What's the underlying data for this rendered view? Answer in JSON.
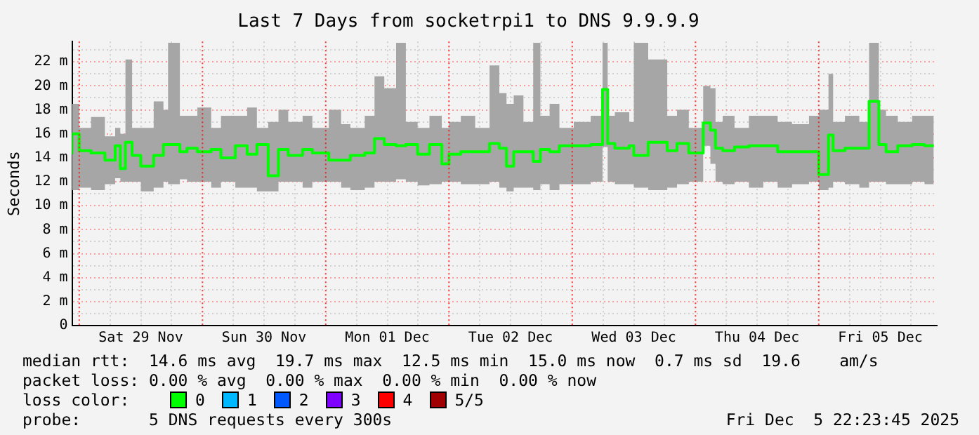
{
  "chart_data": {
    "type": "step",
    "title": "Last 7 Days from socketrpi1 to DNS 9.9.9.9",
    "ylabel": "Seconds",
    "x": [
      "2025-11-28T22:36",
      "2025-11-29T00:00",
      "2025-11-29T02:18",
      "2025-11-29T05:00",
      "2025-11-29T07:00",
      "2025-11-29T08:00",
      "2025-11-29T09:00",
      "2025-11-29T10:18",
      "2025-11-29T12:00",
      "2025-11-29T14:30",
      "2025-11-29T16:24",
      "2025-11-29T17:18",
      "2025-11-29T19:36",
      "2025-11-29T21:00",
      "2025-11-29T23:00",
      "2025-11-30T01:42",
      "2025-11-30T03:36",
      "2025-11-30T06:24",
      "2025-11-30T08:42",
      "2025-11-30T10:36",
      "2025-11-30T12:48",
      "2025-11-30T14:48",
      "2025-11-30T16:42",
      "2025-11-30T19:30",
      "2025-11-30T21:24",
      "2025-12-01T00:36",
      "2025-12-01T03:00",
      "2025-12-01T04:48",
      "2025-12-01T07:36",
      "2025-12-01T09:30",
      "2025-12-01T11:24",
      "2025-12-01T13:42",
      "2025-12-01T15:36",
      "2025-12-01T17:54",
      "2025-12-01T20:12",
      "2025-12-01T22:36",
      "2025-12-02T00:00",
      "2025-12-02T02:18",
      "2025-12-02T05:06",
      "2025-12-02T07:54",
      "2025-12-02T09:48",
      "2025-12-02T11:12",
      "2025-12-02T12:36",
      "2025-12-02T14:30",
      "2025-12-02T16:24",
      "2025-12-02T17:48",
      "2025-12-02T19:36",
      "2025-12-02T21:30",
      "2025-12-03T00:18",
      "2025-12-03T03:36",
      "2025-12-03T05:54",
      "2025-12-03T06:54",
      "2025-12-03T08:18",
      "2025-12-03T11:06",
      "2025-12-03T12:00",
      "2025-12-03T14:48",
      "2025-12-03T18:30",
      "2025-12-03T20:24",
      "2025-12-03T22:42",
      "2025-12-04T01:30",
      "2025-12-04T02:54",
      "2025-12-04T03:54",
      "2025-12-04T05:18",
      "2025-12-04T07:36",
      "2025-12-04T10:24",
      "2025-12-04T13:12",
      "2025-12-04T16:00",
      "2025-12-04T18:48",
      "2025-12-04T22:06",
      "2025-12-05T00:00",
      "2025-12-05T01:54",
      "2025-12-05T02:48",
      "2025-12-05T05:06",
      "2025-12-05T07:54",
      "2025-12-05T09:48",
      "2025-12-05T11:42",
      "2025-12-05T13:06",
      "2025-12-05T15:24",
      "2025-12-05T18:12",
      "2025-12-05T20:36",
      "2025-12-05T22:24"
    ],
    "series": [
      {
        "color": "#00ff00",
        "values": [
          14.3,
          16.0,
          14.6,
          14.4,
          13.8,
          15.0,
          13.1,
          15.3,
          14.2,
          13.3,
          14.2,
          15.1,
          15.1,
          14.5,
          14.8,
          14.5,
          14.7,
          14.0,
          15.0,
          14.3,
          15.1,
          12.5,
          14.7,
          14.2,
          14.7,
          14.4,
          13.8,
          13.8,
          14.2,
          14.4,
          15.6,
          15.1,
          15.0,
          15.1,
          14.3,
          15.1,
          13.5,
          14.3,
          14.5,
          14.5,
          15.2,
          14.8,
          13.3,
          14.5,
          14.5,
          13.7,
          14.7,
          14.5,
          15.0,
          15.0,
          15.1,
          19.7,
          15.2,
          14.8,
          15.0,
          14.2,
          15.3,
          14.6,
          15.2,
          14.4,
          16.9,
          16.3,
          14.8,
          14.6,
          14.9,
          15.0,
          15.0,
          14.5,
          14.5,
          14.5,
          12.6,
          15.9,
          14.6,
          14.8,
          14.8,
          18.7,
          15.1,
          14.5,
          15.0,
          15.1,
          15.0
        ],
        "lower": [
          11.5,
          11.3,
          11.5,
          11.3,
          11.8,
          12.3,
          12.0,
          12.0,
          12.0,
          11.2,
          11.5,
          12.0,
          11.8,
          12.2,
          12.0,
          12.0,
          11.5,
          12.0,
          11.5,
          11.5,
          11.2,
          11.2,
          12.0,
          12.0,
          11.5,
          12.0,
          12.0,
          11.5,
          11.3,
          11.5,
          12.0,
          12.0,
          12.2,
          12.0,
          11.7,
          11.8,
          12.0,
          12.0,
          11.8,
          11.8,
          12.0,
          11.5,
          11.2,
          11.5,
          11.5,
          11.3,
          11.8,
          11.3,
          11.8,
          11.8,
          12.0,
          14.9,
          12.0,
          11.8,
          11.8,
          11.5,
          11.3,
          11.5,
          11.8,
          12.0,
          15.0,
          13.5,
          12.0,
          11.8,
          12.0,
          11.5,
          12.0,
          11.5,
          11.8,
          12.0,
          11.3,
          11.5,
          12.0,
          11.8,
          11.5,
          12.0,
          12.0,
          11.8,
          11.8,
          12.0,
          11.8
        ],
        "upper": [
          16.7,
          18.5,
          16.5,
          17.4,
          15.8,
          16.5,
          16.0,
          22.2,
          16.5,
          16.5,
          18.7,
          18.0,
          23.6,
          17.5,
          17.5,
          18.2,
          16.5,
          17.5,
          17.5,
          18.2,
          16.5,
          17.0,
          18.0,
          17.0,
          17.5,
          16.5,
          18.0,
          16.8,
          16.5,
          17.5,
          20.8,
          19.8,
          23.6,
          17.0,
          16.5,
          17.5,
          16.5,
          17.0,
          17.5,
          16.5,
          21.7,
          19.4,
          18.5,
          19.2,
          17.0,
          23.6,
          17.5,
          18.5,
          16.5,
          17.0,
          17.5,
          23.6,
          17.5,
          17.8,
          17.0,
          23.6,
          22.2,
          17.5,
          18.0,
          16.5,
          20.0,
          19.8,
          17.0,
          17.5,
          16.5,
          17.5,
          17.5,
          17.0,
          16.8,
          17.5,
          18.0,
          21.0,
          17.0,
          17.5,
          17.0,
          23.6,
          18.0,
          17.5,
          17.0,
          17.5,
          17.5
        ]
      }
    ],
    "xlim": [
      "2025-11-28T22:36",
      "2025-12-05T23:00"
    ],
    "xticks": [
      {
        "value": "2025-11-29T06:00",
        "label": null
      },
      {
        "value": "2025-11-29T12:00",
        "label": "Sat 29 Nov"
      },
      {
        "value": "2025-11-29T18:00",
        "label": null
      },
      {
        "value": "2025-11-30T06:00",
        "label": null
      },
      {
        "value": "2025-11-30T12:00",
        "label": "Sun 30 Nov"
      },
      {
        "value": "2025-11-30T18:00",
        "label": null
      },
      {
        "value": "2025-12-01T06:00",
        "label": null
      },
      {
        "value": "2025-12-01T12:00",
        "label": "Mon 01 Dec"
      },
      {
        "value": "2025-12-01T18:00",
        "label": null
      },
      {
        "value": "2025-12-02T06:00",
        "label": null
      },
      {
        "value": "2025-12-02T12:00",
        "label": "Tue 02 Dec"
      },
      {
        "value": "2025-12-02T18:00",
        "label": null
      },
      {
        "value": "2025-12-03T06:00",
        "label": null
      },
      {
        "value": "2025-12-03T12:00",
        "label": "Wed 03 Dec"
      },
      {
        "value": "2025-12-03T18:00",
        "label": null
      },
      {
        "value": "2025-12-04T06:00",
        "label": null
      },
      {
        "value": "2025-12-04T12:00",
        "label": "Thu 04 Dec"
      },
      {
        "value": "2025-12-04T18:00",
        "label": null
      },
      {
        "value": "2025-12-05T06:00",
        "label": null
      },
      {
        "value": "2025-12-05T12:00",
        "label": "Fri 05 Dec"
      },
      {
        "value": "2025-12-05T18:00",
        "label": null
      }
    ],
    "ylim": [
      0,
      23.7
    ],
    "yticks": [
      0,
      {
        "value": 1,
        "label": null
      },
      {
        "value": 2,
        "label": "2 m"
      },
      {
        "value": 3,
        "label": null
      },
      {
        "value": 4,
        "label": "4 m"
      },
      {
        "value": 5,
        "label": null
      },
      {
        "value": 6,
        "label": "6 m"
      },
      {
        "value": 7,
        "label": null
      },
      {
        "value": 8,
        "label": "8 m"
      },
      {
        "value": 9,
        "label": null
      },
      {
        "value": 10,
        "label": "10 m"
      },
      {
        "value": 11,
        "label": null
      },
      {
        "value": 12,
        "label": "12 m"
      },
      {
        "value": 13,
        "label": null
      },
      {
        "value": 14,
        "label": "14 m"
      },
      {
        "value": 15,
        "label": null
      },
      {
        "value": 16,
        "label": "16 m"
      },
      {
        "value": 17,
        "label": null
      },
      {
        "value": 18,
        "label": "18 m"
      },
      {
        "value": 19,
        "label": null
      },
      {
        "value": 20,
        "label": "20 m"
      },
      {
        "value": 21,
        "label": null
      },
      {
        "value": 22,
        "label": "22 m"
      },
      {
        "value": 23,
        "label": null
      }
    ],
    "grid": true,
    "legend": false,
    "ref_lines": [
      {
        "axis": "x",
        "value": "2025-11-29T00:00",
        "label": null,
        "color": "#ff0000",
        "line_style": "dotted"
      },
      {
        "axis": "x",
        "value": "2025-11-30T00:00",
        "label": null,
        "color": "#ff0000",
        "line_style": "dotted"
      },
      {
        "axis": "x",
        "value": "2025-12-01T00:00",
        "label": null,
        "color": "#ff0000",
        "line_style": "dotted"
      },
      {
        "axis": "x",
        "value": "2025-12-02T00:00",
        "label": null,
        "color": "#ff0000",
        "line_style": "dotted"
      },
      {
        "axis": "x",
        "value": "2025-12-03T00:00",
        "label": null,
        "color": "#ff0000",
        "line_style": "dotted"
      },
      {
        "axis": "x",
        "value": "2025-12-04T00:00",
        "label": null,
        "color": "#ff0000",
        "line_style": "dotted"
      },
      {
        "axis": "x",
        "value": "2025-12-05T00:00",
        "label": null,
        "color": "#ff0000",
        "line_style": "dotted"
      }
    ],
    "annotations": [
      "median rtt:  14.6 ms avg  19.7 ms max  12.5 ms min  15.0 ms now  0.7 ms sd  19.6    am/s",
      "packet loss: 0.00 % avg  0.00 % max  0.00 % min  0.00 % now",
      "loss color:",
      "0",
      "1",
      "2",
      "3",
      "4",
      "5/5",
      "probe:       5 DNS requests every 300s",
      "Fri Dec  5 22:23:45 2025"
    ]
  }
}
